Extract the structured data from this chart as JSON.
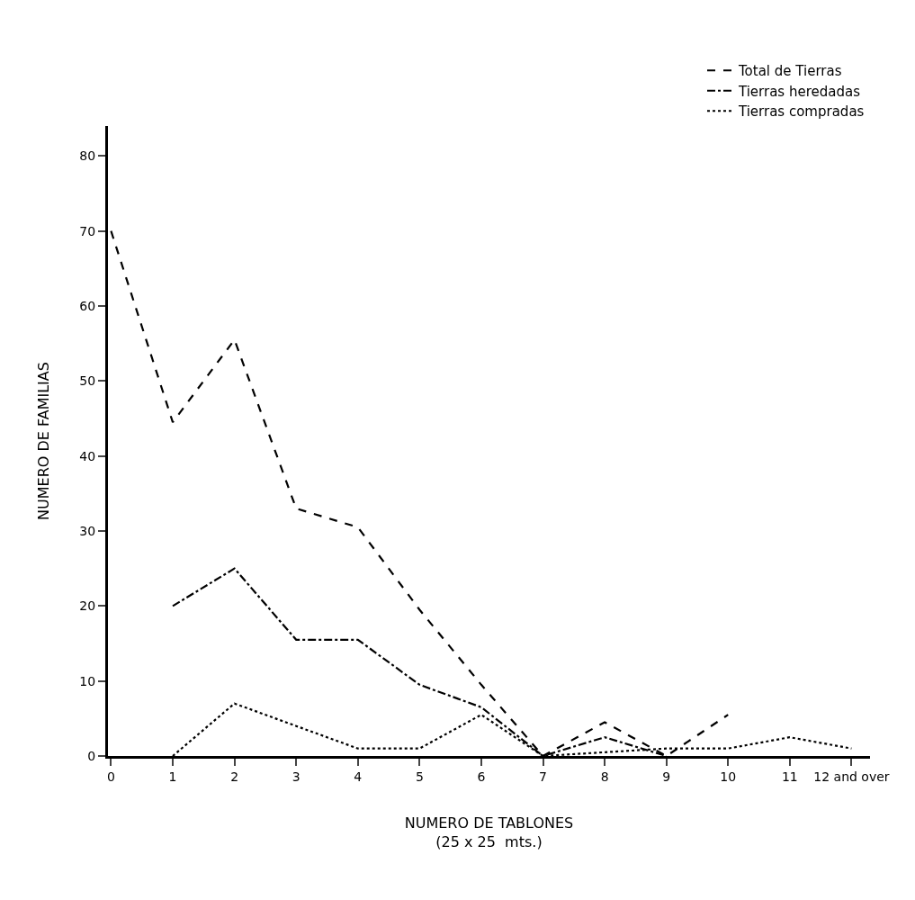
{
  "chart_data": {
    "type": "line",
    "xlabel": "NUMERO DE TABLONES\n(25 x 25  mts.)",
    "ylabel": "NUMERO DE FAMILIAS",
    "categories": [
      "0",
      "1",
      "2",
      "3",
      "4",
      "5",
      "6",
      "7",
      "8",
      "9",
      "10",
      "11",
      "12 and over"
    ],
    "series": [
      {
        "name": "Total de Tierras",
        "color": "#000000",
        "line_style": "dashed",
        "values": [
          70,
          44.5,
          55.5,
          33,
          30.5,
          19.5,
          9.5,
          0,
          4.5,
          0,
          5.5,
          null,
          null
        ]
      },
      {
        "name": "Tierras heredadas",
        "color": "#000000",
        "line_style": "dashdot",
        "values": [
          null,
          20,
          25,
          15.5,
          15.5,
          9.5,
          6.5,
          0,
          2.5,
          0,
          null,
          null,
          null
        ]
      },
      {
        "name": "Tierras compradas",
        "color": "#000000",
        "line_style": "dotted",
        "values": [
          null,
          0,
          7,
          4,
          1,
          1,
          5.5,
          0,
          0.5,
          1,
          1,
          2.5,
          1
        ]
      }
    ],
    "ylim": [
      0,
      84
    ],
    "yticks": [
      0,
      10,
      20,
      30,
      40,
      50,
      60,
      70,
      80
    ],
    "grid": false,
    "legend": "top right",
    "marker": "none"
  }
}
